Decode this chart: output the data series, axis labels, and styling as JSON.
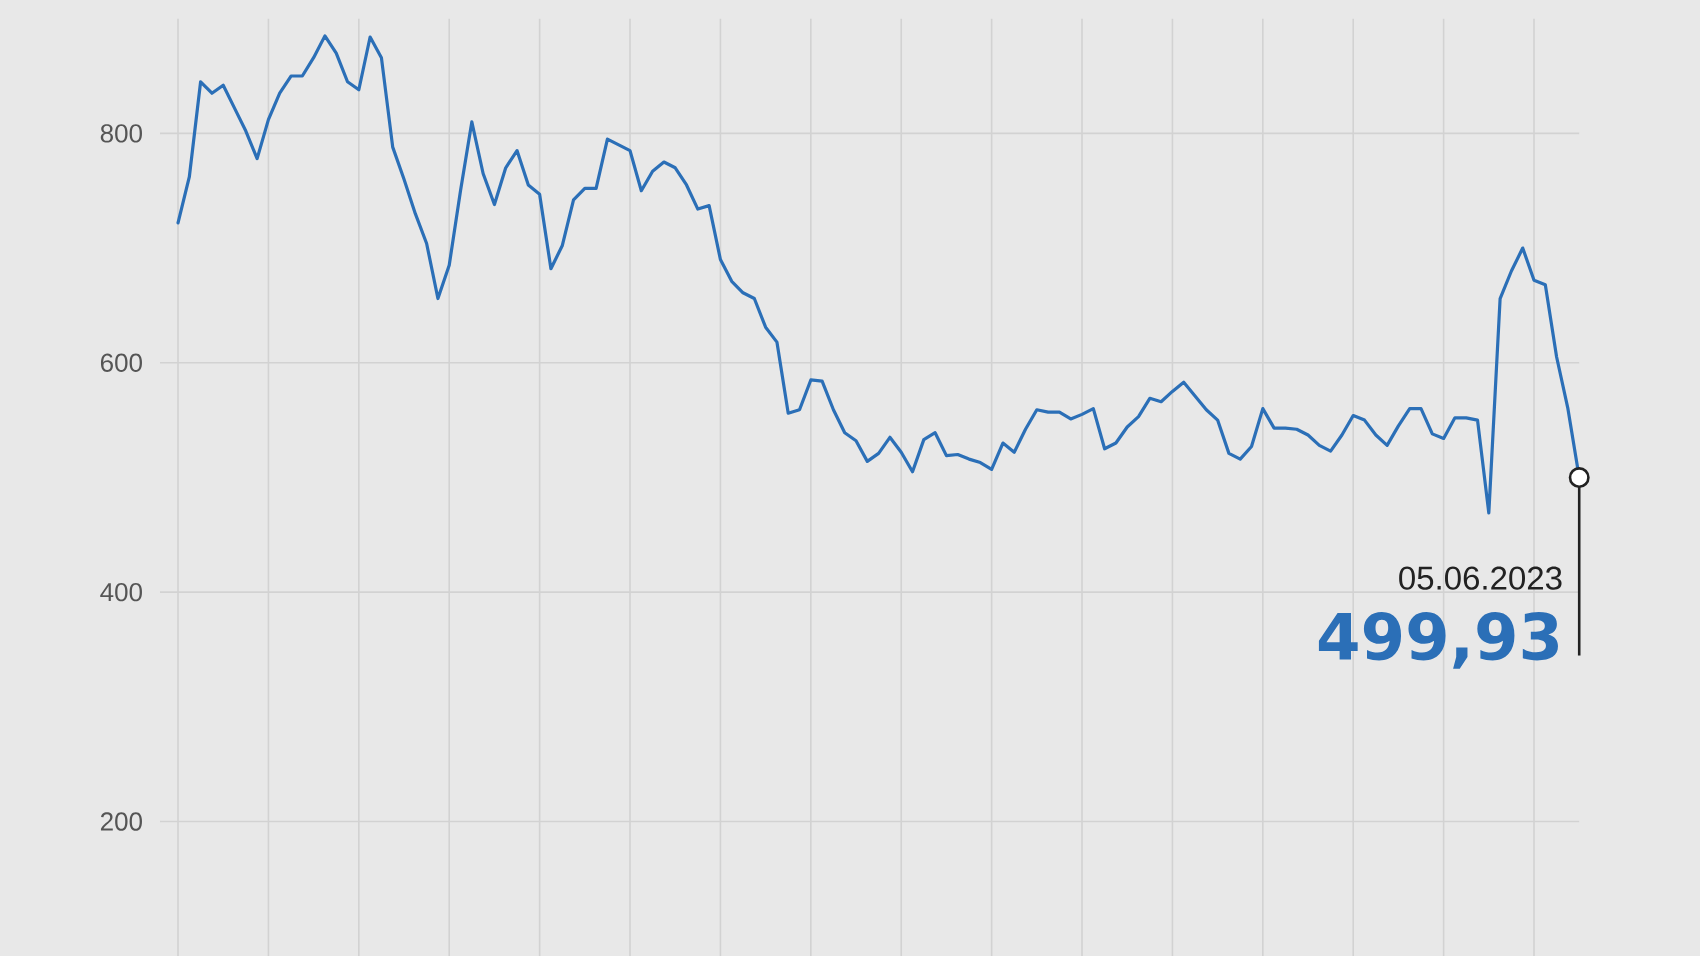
{
  "chart_data": {
    "type": "line",
    "categories": [
      null,
      null,
      null,
      null,
      null,
      null,
      null,
      null,
      null,
      null,
      null,
      null,
      null,
      null,
      null,
      null,
      null,
      null,
      null,
      null,
      null,
      null,
      null,
      null,
      null,
      null,
      null,
      null,
      null,
      null,
      null,
      null,
      null,
      null,
      null,
      null,
      null,
      null,
      null,
      null,
      null,
      null,
      null,
      null,
      null,
      null,
      null,
      null,
      null,
      null,
      null,
      null,
      null,
      null,
      null,
      null,
      null,
      null,
      null,
      null,
      null,
      null,
      null,
      null,
      null,
      null,
      null,
      null,
      null,
      null,
      null,
      null,
      null,
      null,
      null,
      null,
      null,
      null,
      null,
      null,
      null,
      null,
      null,
      null,
      null,
      null,
      null,
      null,
      null,
      null,
      null,
      null,
      null,
      null,
      null,
      null,
      null,
      null,
      null,
      null,
      null,
      null,
      null,
      null,
      null,
      null,
      null,
      null,
      null,
      null,
      null,
      null,
      null,
      null,
      null,
      null,
      null,
      null,
      null,
      null,
      null,
      null,
      null,
      null,
      null
    ],
    "values": [
      722,
      762,
      845,
      835,
      842,
      822,
      802,
      778,
      812,
      835,
      850,
      850,
      866,
      885,
      870,
      845,
      838,
      884,
      866,
      788,
      760,
      730,
      704,
      656,
      685,
      750,
      810,
      765,
      738,
      770,
      785,
      755,
      747,
      682,
      702,
      742,
      752,
      752,
      795,
      790,
      785,
      750,
      767,
      775,
      770,
      755,
      734,
      737,
      690,
      671,
      661,
      656,
      631,
      618,
      556,
      559,
      585,
      584,
      559,
      539,
      532,
      514,
      521,
      535,
      522,
      505,
      533,
      539,
      519,
      520,
      516,
      513,
      507,
      530,
      522,
      542,
      559,
      557,
      557,
      551,
      555,
      560,
      525,
      530,
      544,
      553,
      569,
      566,
      575,
      583,
      571,
      559,
      550,
      521,
      516,
      527,
      560,
      543,
      543,
      542,
      537,
      528,
      523,
      537,
      554,
      550,
      537,
      528,
      545,
      560,
      560,
      538,
      534,
      552,
      552,
      550,
      469,
      656,
      680,
      700,
      672,
      668,
      605,
      560,
      499.93
    ],
    "value_labels": [
      null,
      null,
      null,
      null,
      null,
      null,
      null,
      null,
      null,
      null,
      null,
      null,
      null,
      null,
      null,
      null,
      null,
      null,
      null,
      null,
      null,
      null,
      null,
      null,
      null,
      null,
      null,
      null,
      null,
      null,
      null,
      null,
      null,
      null,
      null,
      null,
      null,
      null,
      null,
      null,
      null,
      null,
      null,
      null,
      null,
      null,
      null,
      null,
      null,
      null,
      null,
      null,
      null,
      null,
      null,
      null,
      null,
      null,
      null,
      null,
      null,
      null,
      null,
      null,
      null,
      null,
      null,
      null,
      null,
      null,
      null,
      null,
      null,
      null,
      null,
      null,
      null,
      null,
      null,
      null,
      null,
      null,
      null,
      null,
      null,
      null,
      null,
      null,
      null,
      null,
      null,
      null,
      null,
      null,
      null,
      null,
      null,
      null,
      null,
      null,
      null,
      null,
      null,
      null,
      null,
      null,
      null,
      null,
      null,
      null,
      null,
      null,
      null,
      null,
      null,
      null,
      null,
      null,
      null,
      null,
      null,
      null,
      null,
      null,
      "499,93"
    ],
    "color": "#2b6fb7",
    "ylim": [
      80,
      900
    ],
    "yticks": [
      200,
      400,
      600,
      800
    ],
    "grid": true,
    "annotations": [
      {
        "text": "05.06.2023",
        "y": 499.93
      }
    ]
  }
}
